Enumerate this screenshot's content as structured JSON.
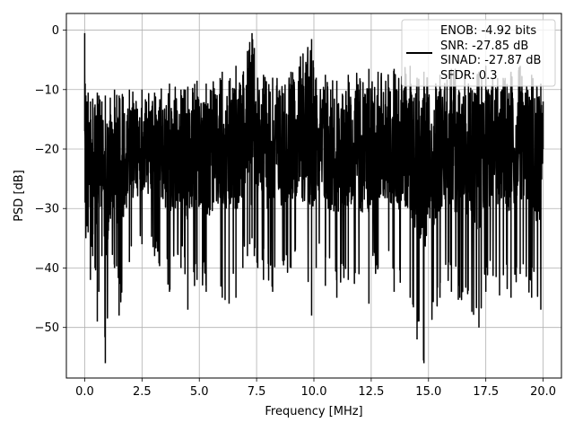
{
  "chart_data": {
    "type": "line",
    "title": "",
    "xlabel": "Frequency [MHz]",
    "ylabel": "PSD [dB]",
    "xlim": [
      -0.8,
      20.8
    ],
    "ylim": [
      -58.5,
      2.8
    ],
    "x_ticks": [
      0.0,
      2.5,
      5.0,
      7.5,
      10.0,
      12.5,
      15.0,
      17.5,
      20.0
    ],
    "x_tick_labels": [
      "0.0",
      "2.5",
      "5.0",
      "7.5",
      "10.0",
      "12.5",
      "15.0",
      "17.5",
      "20.0"
    ],
    "y_ticks": [
      0,
      -10,
      -20,
      -30,
      -40,
      -50
    ],
    "y_tick_labels": [
      "0",
      "−10",
      "−20",
      "−30",
      "−40",
      "−50"
    ],
    "grid": true,
    "legend": {
      "placement": "top-right",
      "entries": [
        "ENOB: -4.92 bits",
        "SNR: -27.85 dB",
        "SINAD: -27.87 dB",
        "SFDR: 0.3"
      ]
    },
    "series": [
      {
        "color": "#000000",
        "x": [
          0.0,
          0.02,
          0.05,
          0.1,
          0.15,
          0.25,
          0.35,
          0.45,
          0.55,
          0.62,
          0.75,
          0.9,
          1.3,
          1.5,
          1.95,
          2.5,
          3.05,
          3.7,
          4.2,
          4.5,
          4.9,
          5.3,
          6.0,
          6.3,
          6.6,
          6.9,
          7.1,
          7.2,
          7.3,
          7.4,
          7.55,
          7.8,
          8.2,
          9.0,
          9.9,
          10.1,
          10.5,
          11.0,
          11.5,
          12.4,
          12.8,
          13.5,
          14.2,
          14.5,
          14.8,
          15.5,
          16.0,
          17.2,
          17.5,
          18.6,
          19.0,
          19.5,
          19.9,
          20.0
        ],
        "peaks": [
          -0.5,
          -9.0,
          -11.0,
          -12.0,
          -10.5,
          -12.0,
          -11.5,
          -12.5,
          -10.5,
          -11.0,
          -12.0,
          -11.0,
          -10.0,
          -11.0,
          -10.0,
          -10.0,
          -10.5,
          -9.0,
          -10.0,
          -9.5,
          -8.5,
          -9.0,
          -7.0,
          -8.5,
          -6.0,
          -7.5,
          -3.5,
          -2.0,
          -0.5,
          -3.0,
          -8.0,
          -7.5,
          -8.0,
          -7.0,
          -1.5,
          -8.0,
          -7.5,
          -8.5,
          -7.5,
          -6.5,
          -7.0,
          -6.5,
          -6.0,
          -8.0,
          -7.0,
          -7.5,
          -6.5,
          -7.0,
          -6.0,
          -7.0,
          -6.0,
          -7.5,
          -9.0,
          -12.0
        ],
        "troughs": [
          -17.0,
          -29.0,
          -35.0,
          -33.0,
          -34.0,
          -42.0,
          -38.0,
          -40.0,
          -49.0,
          -44.0,
          -38.0,
          -56.0,
          -40.0,
          -48.0,
          -39.0,
          -36.0,
          -38.0,
          -44.0,
          -40.0,
          -47.0,
          -42.0,
          -44.0,
          -45.0,
          -46.0,
          -45.0,
          -40.0,
          -38.0,
          -36.0,
          -35.0,
          -38.0,
          -40.0,
          -42.0,
          -44.0,
          -40.0,
          -48.0,
          -40.0,
          -43.0,
          -45.0,
          -42.0,
          -46.0,
          -40.0,
          -44.0,
          -45.0,
          -52.0,
          -56.0,
          -45.0,
          -44.0,
          -50.0,
          -44.0,
          -45.0,
          -41.0,
          -45.0,
          -47.0,
          -20.0
        ]
      }
    ]
  }
}
